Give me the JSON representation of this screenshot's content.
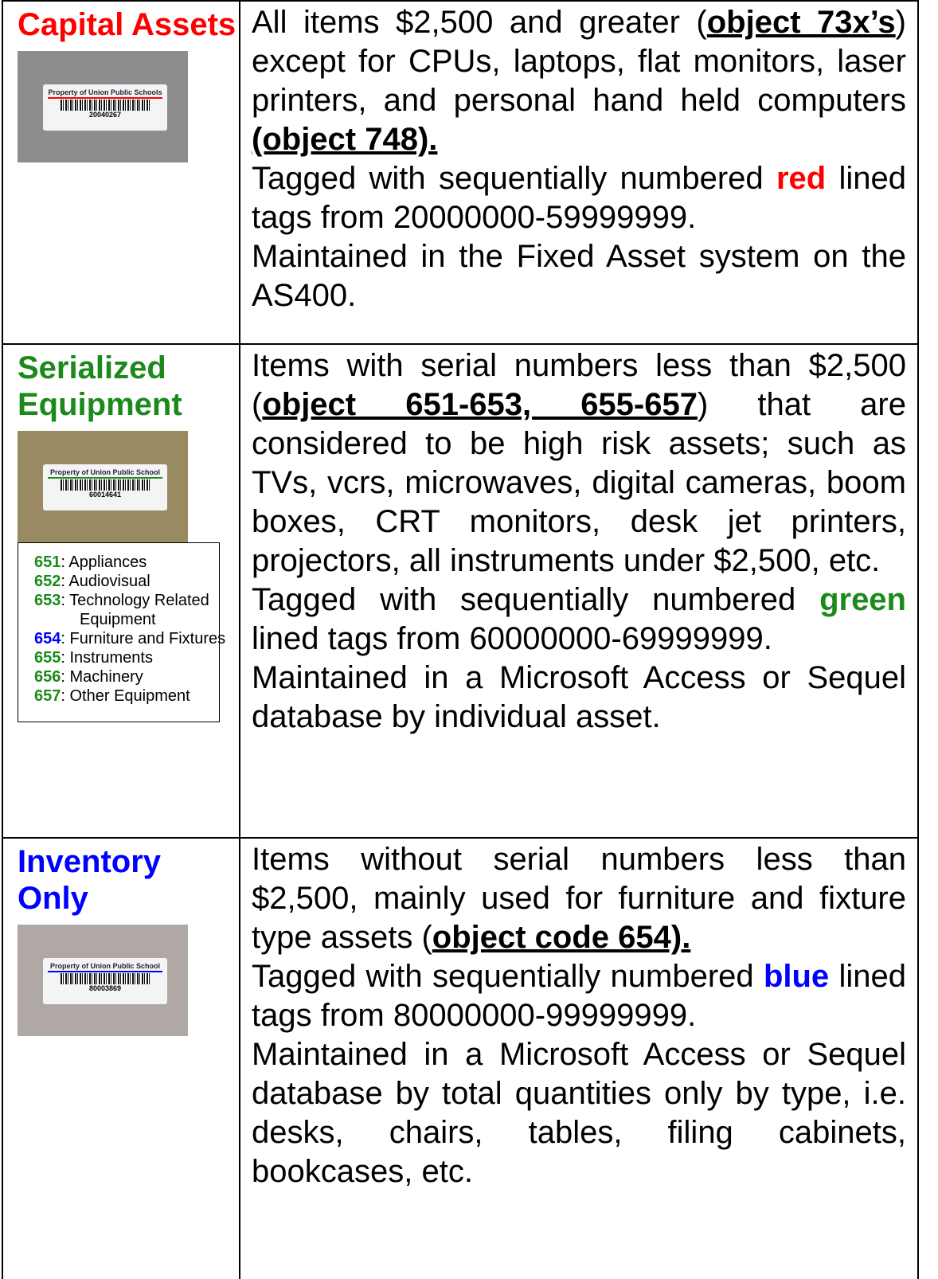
{
  "table": {
    "rows": [
      {
        "title": "Capital Assets",
        "color": "#ff0000",
        "photo_color": "#8d8d8d",
        "tag": {
          "label": "Property of Union Public Schools",
          "number": "20040267"
        },
        "paragraphs": [
          [
            {
              "text": "All items $2,500 and greater (",
              "style": "plain"
            },
            {
              "text": "object 73x’s",
              "style": "bold-underline"
            },
            {
              "text": ") except for CPUs, laptops, flat monitors, laser printers, and personal hand held computers ",
              "style": "plain"
            },
            {
              "text": "(object 748).",
              "style": "bold-underline"
            }
          ],
          [
            {
              "text": "Tagged with sequentially numbered ",
              "style": "plain"
            },
            {
              "text": "red",
              "style": "highlight"
            },
            {
              "text": " lined tags from 20000000-59999999.",
              "style": "plain"
            }
          ],
          [
            {
              "text": "Maintained in the Fixed Asset system on the AS400.",
              "style": "plain"
            }
          ]
        ]
      },
      {
        "title": "Serialized Equipment",
        "color": "#1b8a1b",
        "photo_color": "#9a8a62",
        "tag": {
          "label": "Property of Union Public School",
          "number": "60014641"
        },
        "legend": [
          {
            "code": "651",
            "code_color": "#1b8a1b",
            "text": ": Appliances"
          },
          {
            "code": "652",
            "code_color": "#1b8a1b",
            "text": ": Audiovisual"
          },
          {
            "code": "653",
            "code_color": "#1b8a1b",
            "text": ": Technology Related Equipment"
          },
          {
            "code": "654",
            "code_color": "#0000ff",
            "text": ": Furniture and Fixtures"
          },
          {
            "code": "655",
            "code_color": "#1b8a1b",
            "text": ": Instruments"
          },
          {
            "code": "656",
            "code_color": "#1b8a1b",
            "text": ":  Machinery"
          },
          {
            "code": "657",
            "code_color": "#1b8a1b",
            "text": ": Other Equipment"
          }
        ],
        "paragraphs": [
          [
            {
              "text": "Items with serial numbers less than $2,500 (",
              "style": "plain"
            },
            {
              "text": "object 651-653, 655-657",
              "style": "bold-underline"
            },
            {
              "text": ") that are considered to be high risk assets; such as TVs, vcrs, microwaves, digital cameras, boom boxes, CRT monitors, desk jet printers, projectors, all instruments under $2,500, etc.",
              "style": "plain"
            }
          ],
          [
            {
              "text": "Tagged with sequentially numbered ",
              "style": "plain"
            },
            {
              "text": "green",
              "style": "highlight"
            },
            {
              "text": " lined tags from 60000000-69999999.",
              "style": "plain"
            }
          ],
          [
            {
              "text": "Maintained in a Microsoft Access or Sequel database by individual asset.",
              "style": "plain"
            }
          ]
        ]
      },
      {
        "title": "Inventory Only",
        "color": "#0000ff",
        "photo_color": "#b0a8a4",
        "tag": {
          "label": "Property of Union Public School",
          "number": "80003869"
        },
        "paragraphs": [
          [
            {
              "text": "Items without serial numbers less than $2,500, mainly used for furniture and fixture type assets (",
              "style": "plain"
            },
            {
              "text": "object code 654).",
              "style": "bold-underline"
            }
          ],
          [
            {
              "text": "Tagged with sequentially numbered ",
              "style": "plain"
            },
            {
              "text": "blue",
              "style": "highlight"
            },
            {
              "text": " lined tags from 80000000-99999999.",
              "style": "plain"
            }
          ],
          [
            {
              "text": "Maintained in a Microsoft Access or Sequel database by total quantities only by type, i.e. desks, chairs, tables, filing cabinets, bookcases, etc.",
              "style": "plain"
            }
          ]
        ]
      }
    ]
  }
}
